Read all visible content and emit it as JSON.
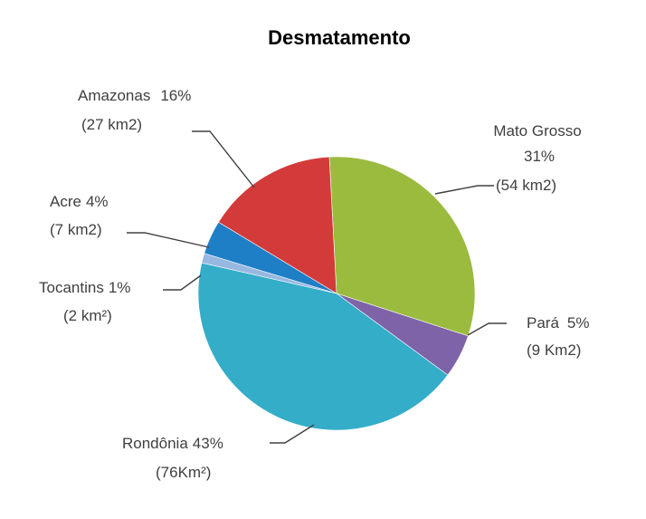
{
  "chart_data": {
    "type": "pie",
    "title": "Desmatamento",
    "slices": [
      {
        "name": "Mato Grosso",
        "percent_label": "31%",
        "area_label": "(54 km2)",
        "value": 54,
        "color": "#9BBB3F"
      },
      {
        "name": "Pará",
        "percent_label": "5%",
        "area_label": "(9 Km2)",
        "value": 9,
        "color": "#7E63A8"
      },
      {
        "name": "Rondônia",
        "percent_label": "43%",
        "area_label": "(76Km²)",
        "value": 76,
        "color": "#34ADC9"
      },
      {
        "name": "Tocantins",
        "percent_label": "1%",
        "area_label": "(2 km²)",
        "value": 2,
        "color": "#97B8E0"
      },
      {
        "name": "Acre",
        "percent_label": "4%",
        "area_label": "(7 km2)",
        "value": 7,
        "color": "#1F7FC6"
      },
      {
        "name": "Amazonas",
        "percent_label": "16%",
        "area_label": "(27 km2)",
        "value": 27,
        "color": "#D23B3A"
      }
    ],
    "legend": "none"
  }
}
